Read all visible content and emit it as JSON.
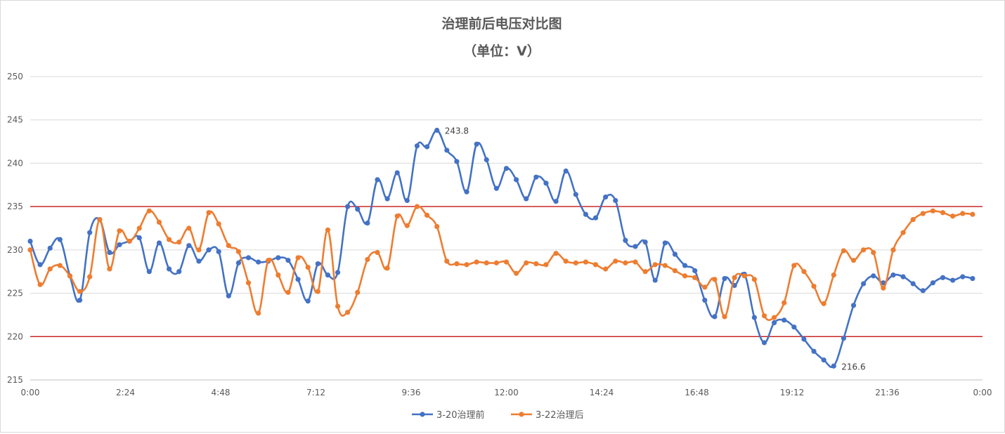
{
  "chart_data": {
    "type": "line",
    "title": "治理前后电压对比图",
    "subtitle": "（单位：V）",
    "ylim": [
      215,
      250
    ],
    "yticks": [
      215,
      220,
      225,
      230,
      235,
      240,
      245,
      250
    ],
    "xlim": [
      0,
      96
    ],
    "xticks": [
      {
        "value": 0,
        "label": "0:00"
      },
      {
        "value": 9.6,
        "label": "2:24"
      },
      {
        "value": 19.2,
        "label": "4:48"
      },
      {
        "value": 28.8,
        "label": "7:12"
      },
      {
        "value": 38.4,
        "label": "9:36"
      },
      {
        "value": 48,
        "label": "12:00"
      },
      {
        "value": 57.6,
        "label": "14:24"
      },
      {
        "value": 67.2,
        "label": "16:48"
      },
      {
        "value": 76.8,
        "label": "19:12"
      },
      {
        "value": 86.4,
        "label": "21:36"
      },
      {
        "value": 96,
        "label": "0:00"
      }
    ],
    "reference_lines": [
      {
        "value": 235,
        "color": "#c00000"
      },
      {
        "value": 220,
        "color": "#c00000"
      }
    ],
    "grid": true,
    "legend_position": "bottom",
    "series": [
      {
        "name": "3-20治理前",
        "color": "#4472c4",
        "values": [
          231.0,
          228.3,
          230.2,
          231.2,
          227.0,
          224.2,
          232.0,
          233.5,
          229.7,
          230.6,
          231.0,
          231.4,
          227.5,
          230.8,
          227.8,
          227.5,
          230.5,
          228.7,
          230.0,
          229.8,
          224.7,
          228.5,
          229.1,
          228.6,
          228.7,
          229.1,
          228.8,
          226.6,
          224.1,
          228.4,
          227.1,
          227.4,
          235.0,
          234.7,
          233.1,
          238.1,
          235.9,
          238.9,
          235.7,
          242.0,
          241.9,
          243.8,
          241.5,
          240.2,
          236.7,
          242.2,
          240.4,
          237.1,
          239.4,
          238.1,
          235.9,
          238.4,
          237.7,
          235.6,
          239.1,
          236.4,
          234.1,
          233.7,
          236.1,
          235.7,
          231.1,
          230.4,
          230.9,
          226.5,
          230.8,
          229.5,
          228.2,
          227.6,
          224.2,
          222.3,
          226.7,
          225.9,
          227.2,
          222.2,
          219.3,
          221.6,
          221.9,
          221.1,
          219.7,
          218.3,
          217.3,
          216.6,
          219.8,
          223.6,
          226.1,
          227.0,
          226.2,
          227.1,
          226.9,
          226.1,
          225.3,
          226.2,
          226.8,
          226.5,
          226.9,
          226.7
        ],
        "labels": [
          {
            "index": 41,
            "text": "243.8",
            "position": "right"
          },
          {
            "index": 81,
            "text": "216.6",
            "position": "right"
          }
        ]
      },
      {
        "name": "3-22治理后",
        "color": "#ed7d31",
        "values": [
          230.0,
          226.0,
          227.8,
          228.2,
          227.0,
          225.2,
          226.9,
          233.5,
          227.8,
          232.2,
          231.0,
          232.5,
          234.5,
          233.2,
          231.2,
          230.9,
          232.5,
          230.0,
          234.3,
          233.0,
          230.5,
          229.8,
          226.2,
          222.7,
          228.8,
          227.1,
          225.1,
          229.1,
          228.0,
          225.2,
          232.3,
          223.5,
          222.8,
          225.1,
          228.9,
          229.7,
          227.9,
          233.9,
          232.8,
          235.0,
          234.0,
          232.7,
          228.7,
          228.4,
          228.3,
          228.6,
          228.5,
          228.5,
          228.6,
          227.3,
          228.5,
          228.4,
          228.3,
          229.6,
          228.7,
          228.5,
          228.6,
          228.3,
          227.8,
          228.7,
          228.5,
          228.6,
          227.5,
          228.3,
          228.2,
          227.6,
          227.0,
          226.8,
          225.7,
          226.6,
          222.3,
          226.8,
          227.0,
          226.6,
          222.4,
          222.2,
          223.9,
          228.2,
          227.5,
          225.8,
          223.8,
          227.1,
          229.9,
          228.8,
          230.0,
          229.7,
          225.6,
          230.0,
          232.0,
          233.5,
          234.2,
          234.5,
          234.3,
          233.9,
          234.2,
          234.1
        ],
        "labels": []
      }
    ]
  }
}
